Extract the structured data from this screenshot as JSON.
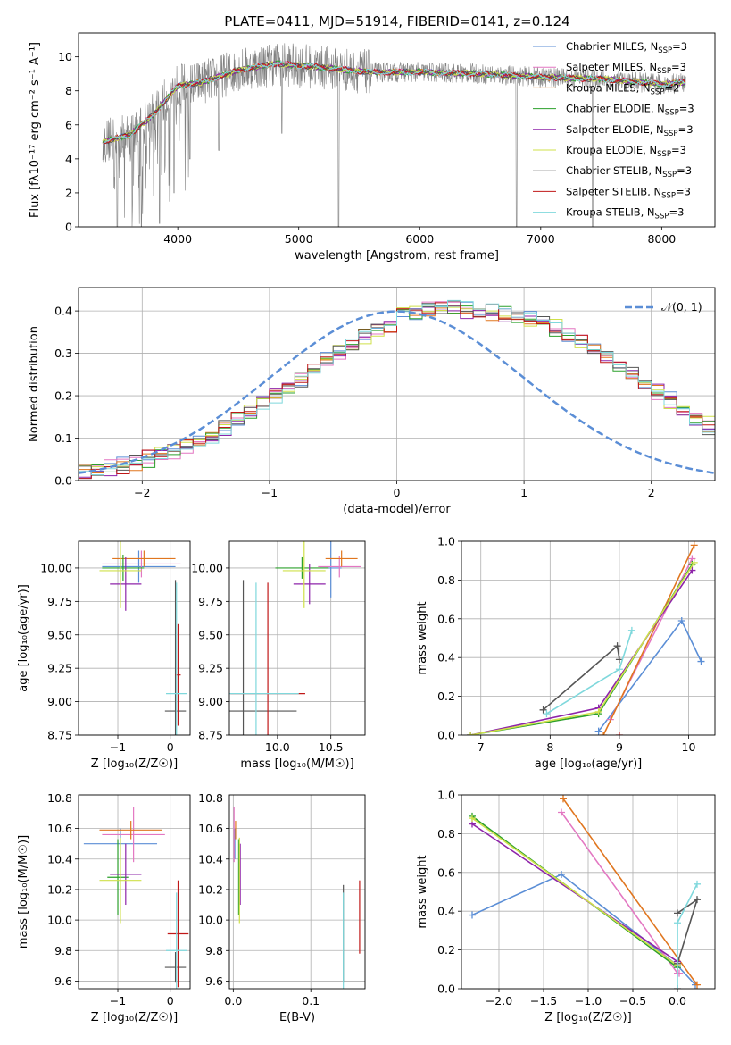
{
  "figure_title": "PLATE=0411, MJD=51914, FIBERID=0141, z=0.124",
  "colors": {
    "Chabrier MILES": "#5b8ed6",
    "Salpeter MILES": "#e377c2",
    "Kroupa MILES": "#e0761f",
    "Chabrier ELODIE": "#2ca02c",
    "Salpeter ELODIE": "#8e24aa",
    "Kroupa ELODIE": "#cfe04a",
    "Chabrier STELIB": "#555555",
    "Salpeter STELIB": "#c01818",
    "Kroupa STELIB": "#7fd8dc",
    "gaussian": "#5b8ed6",
    "grid": "#b0b0b0"
  },
  "chart_data": [
    {
      "id": "spectrum",
      "type": "line",
      "title": "PLATE=0411, MJD=51914, FIBERID=0141, z=0.124",
      "xlabel": "wavelength [Angstrom, rest frame]",
      "ylabel": "Flux [fλ10⁻¹⁷ erg cm⁻² s⁻¹ A⁻¹]",
      "xlim": [
        3180,
        8440
      ],
      "ylim": [
        0,
        11.4
      ],
      "xticks": [
        4000,
        5000,
        6000,
        7000,
        8000
      ],
      "yticks": [
        0,
        2,
        4,
        6,
        8,
        10
      ],
      "grid": false,
      "legend_position": "right",
      "legend": [
        {
          "label": "Chabrier MILES, N",
          "sub": "SSP",
          "tail": "=3"
        },
        {
          "label": "Salpeter MILES, N",
          "sub": "SSP",
          "tail": "=3"
        },
        {
          "label": "Kroupa MILES, N",
          "sub": "SSP",
          "tail": "=2"
        },
        {
          "label": "Chabrier ELODIE, N",
          "sub": "SSP",
          "tail": "=3"
        },
        {
          "label": "Salpeter ELODIE, N",
          "sub": "SSP",
          "tail": "=3"
        },
        {
          "label": "Kroupa ELODIE, N",
          "sub": "SSP",
          "tail": "=3"
        },
        {
          "label": "Chabrier STELIB, N",
          "sub": "SSP",
          "tail": "=3"
        },
        {
          "label": "Salpeter STELIB, N",
          "sub": "SSP",
          "tail": "=3"
        },
        {
          "label": "Kroupa STELIB, N",
          "sub": "SSP",
          "tail": "=3"
        }
      ],
      "continuum": [
        [
          3380,
          5.0
        ],
        [
          3600,
          5.4
        ],
        [
          3800,
          6.6
        ],
        [
          4000,
          8.3
        ],
        [
          4200,
          8.5
        ],
        [
          4500,
          9.2
        ],
        [
          4800,
          9.6
        ],
        [
          5000,
          9.5
        ],
        [
          5300,
          9.3
        ],
        [
          5600,
          9.1
        ],
        [
          6000,
          9.1
        ],
        [
          6500,
          9.0
        ],
        [
          7000,
          8.8
        ],
        [
          7500,
          8.7
        ],
        [
          8000,
          8.4
        ],
        [
          8200,
          8.5
        ]
      ],
      "noise_amplitude": 1.2,
      "drops": [
        [
          3500,
          0
        ],
        [
          3700,
          0
        ],
        [
          3850,
          0.2
        ],
        [
          3935,
          1.5
        ],
        [
          3970,
          2.0
        ],
        [
          4100,
          4.0
        ],
        [
          4340,
          4.5
        ],
        [
          4860,
          5.5
        ],
        [
          5330,
          0
        ],
        [
          6800,
          0
        ],
        [
          7430,
          0
        ]
      ]
    },
    {
      "id": "residuals",
      "type": "line",
      "xlabel": "(data-model)/error",
      "ylabel": "Normed distribution",
      "xlim": [
        -2.5,
        2.5
      ],
      "ylim": [
        0,
        0.455
      ],
      "xticks": [
        -2,
        -1,
        0,
        1,
        2
      ],
      "yticks": [
        0.0,
        0.1,
        0.2,
        0.3,
        0.4
      ],
      "grid": true,
      "legend_position": "upper-right",
      "legend": [
        {
          "label": "𝒩(0, 1)",
          "style": "dashed"
        }
      ],
      "bin_width": 0.1,
      "bins_start": -2.5,
      "base_values": [
        0.021,
        0.025,
        0.031,
        0.036,
        0.044,
        0.052,
        0.06,
        0.07,
        0.08,
        0.095,
        0.11,
        0.126,
        0.143,
        0.16,
        0.18,
        0.2,
        0.22,
        0.24,
        0.262,
        0.285,
        0.305,
        0.323,
        0.34,
        0.355,
        0.368,
        0.378,
        0.386,
        0.392,
        0.396,
        0.399,
        0.392,
        0.388,
        0.385,
        0.38,
        0.375,
        0.368,
        0.36,
        0.35,
        0.34,
        0.325,
        0.31,
        0.292,
        0.272,
        0.25,
        0.23,
        0.21,
        0.19,
        0.17,
        0.15,
        0.13
      ],
      "gaussian": {
        "mu": 0,
        "sigma": 1
      }
    },
    {
      "id": "age_vs_Z",
      "type": "scatter",
      "xlabel": "Z [log₁₀(Z/Z☉)]",
      "ylabel": "age  [log₁₀(age/yr)]",
      "xlim": [
        -1.75,
        0.38
      ],
      "ylim": [
        8.75,
        10.2
      ],
      "xticks": [
        -1,
        0
      ],
      "yticks": [
        8.75,
        9.0,
        9.25,
        9.5,
        9.75,
        10.0
      ],
      "grid": true,
      "points": [
        {
          "series": "Chabrier MILES",
          "x": -0.6,
          "xerr": 0.7,
          "y": 10.01,
          "yerr": 0.12
        },
        {
          "series": "Salpeter MILES",
          "x": -0.55,
          "xerr": 0.75,
          "y": 10.03,
          "yerr": 0.1
        },
        {
          "series": "Kroupa MILES",
          "x": -0.5,
          "xerr": 0.6,
          "y": 10.07,
          "yerr": 0.06
        },
        {
          "series": "Chabrier ELODIE",
          "x": -0.9,
          "xerr": 0.4,
          "y": 10.0,
          "yerr": 0.1
        },
        {
          "series": "Salpeter ELODIE",
          "x": -0.85,
          "xerr": 0.3,
          "y": 9.88,
          "yerr": 0.2
        },
        {
          "series": "Kroupa ELODIE",
          "x": -0.95,
          "xerr": 0.4,
          "y": 9.98,
          "yerr": 0.28
        },
        {
          "series": "Chabrier STELIB",
          "x": 0.1,
          "xerr": 0.2,
          "y": 8.93,
          "yerr": 0.98
        },
        {
          "series": "Salpeter STELIB",
          "x": 0.15,
          "xerr": 0.05,
          "y": 9.2,
          "yerr": 0.38
        },
        {
          "series": "Kroupa STELIB",
          "x": 0.12,
          "xerr": 0.2,
          "y": 9.06,
          "yerr": 0.83
        }
      ]
    },
    {
      "id": "age_vs_mass",
      "type": "scatter",
      "xlabel": "mass [log₁₀(M/M☉)]",
      "ylabel": "",
      "xlim": [
        9.55,
        10.82
      ],
      "ylim": [
        8.75,
        10.2
      ],
      "xticks": [
        10.0,
        10.5
      ],
      "yticks": [
        8.75,
        9.0,
        9.25,
        9.5,
        9.75,
        10.0
      ],
      "grid": true,
      "points": [
        {
          "series": "Chabrier MILES",
          "x": 10.5,
          "xerr": 0.1,
          "y": 10.0,
          "yerr": 0.22
        },
        {
          "series": "Salpeter MILES",
          "x": 10.58,
          "xerr": 0.2,
          "y": 10.01,
          "yerr": 0.08
        },
        {
          "series": "Kroupa MILES",
          "x": 10.6,
          "xerr": 0.15,
          "y": 10.07,
          "yerr": 0.06
        },
        {
          "series": "Chabrier ELODIE",
          "x": 10.23,
          "xerr": 0.25,
          "y": 10.0,
          "yerr": 0.08
        },
        {
          "series": "Salpeter ELODIE",
          "x": 10.3,
          "xerr": 0.15,
          "y": 9.88,
          "yerr": 0.15
        },
        {
          "series": "Kroupa ELODIE",
          "x": 10.25,
          "xerr": 0.2,
          "y": 9.98,
          "yerr": 0.28
        },
        {
          "series": "Chabrier STELIB",
          "x": 9.68,
          "xerr": 0.5,
          "y": 8.93,
          "yerr": 0.98
        },
        {
          "series": "Salpeter STELIB",
          "x": 9.91,
          "xerr": 0.35,
          "y": 9.06,
          "yerr": 0.83
        },
        {
          "series": "Kroupa STELIB",
          "x": 9.8,
          "xerr": 0.4,
          "y": 9.06,
          "yerr": 0.83
        }
      ]
    },
    {
      "id": "weight_vs_age",
      "type": "line",
      "xlabel": "age  [log₁₀(age/yr)]",
      "ylabel": "mass weight",
      "xlim": [
        6.72,
        10.38
      ],
      "ylim": [
        0,
        1.0
      ],
      "xticks": [
        7,
        8,
        9,
        10
      ],
      "yticks": [
        0.0,
        0.2,
        0.4,
        0.6,
        0.8,
        1.0
      ],
      "grid": true,
      "series": [
        {
          "name": "Chabrier MILES",
          "points": [
            [
              8.7,
              0.02
            ],
            [
              9.9,
              0.59
            ],
            [
              10.18,
              0.38
            ]
          ]
        },
        {
          "name": "Salpeter MILES",
          "points": [
            [
              8.87,
              0.08
            ],
            [
              10.05,
              0.91
            ]
          ]
        },
        {
          "name": "Kroupa MILES",
          "points": [
            [
              8.77,
              0.0
            ],
            [
              10.08,
              0.98
            ]
          ]
        },
        {
          "name": "Chabrier ELODIE",
          "points": [
            [
              6.85,
              0.0
            ],
            [
              8.7,
              0.11
            ],
            [
              10.05,
              0.88
            ]
          ]
        },
        {
          "name": "Salpeter ELODIE",
          "points": [
            [
              6.85,
              0.0
            ],
            [
              8.7,
              0.14
            ],
            [
              10.05,
              0.85
            ]
          ]
        },
        {
          "name": "Kroupa ELODIE",
          "points": [
            [
              6.85,
              0.0
            ],
            [
              8.7,
              0.12
            ],
            [
              10.08,
              0.89
            ]
          ]
        },
        {
          "name": "Chabrier STELIB",
          "points": [
            [
              7.9,
              0.13
            ],
            [
              8.97,
              0.46
            ],
            [
              9.0,
              0.39
            ]
          ]
        },
        {
          "name": "Salpeter STELIB",
          "points": [
            [
              9.0,
              0.0
            ]
          ]
        },
        {
          "name": "Kroupa STELIB",
          "points": [
            [
              7.95,
              0.11
            ],
            [
              9.0,
              0.34
            ],
            [
              9.18,
              0.54
            ]
          ]
        }
      ]
    },
    {
      "id": "mass_vs_Z",
      "type": "scatter",
      "xlabel": "Z [log₁₀(Z/Z☉)]",
      "ylabel": "mass [log₁₀(M/M☉)]",
      "xlim": [
        -1.75,
        0.38
      ],
      "ylim": [
        9.55,
        10.82
      ],
      "xticks": [
        -1,
        0
      ],
      "yticks": [
        9.6,
        9.8,
        10.0,
        10.2,
        10.4,
        10.6,
        10.8
      ],
      "grid": true,
      "points": [
        {
          "series": "Chabrier MILES",
          "x": -0.95,
          "xerr": 0.7,
          "y": 10.5,
          "yerr": 0.1
        },
        {
          "series": "Salpeter MILES",
          "x": -0.7,
          "xerr": 0.6,
          "y": 10.56,
          "yerr": 0.18
        },
        {
          "series": "Kroupa MILES",
          "x": -0.75,
          "xerr": 0.6,
          "y": 10.59,
          "yerr": 0.06
        },
        {
          "series": "Chabrier ELODIE",
          "x": -1.0,
          "xerr": 0.2,
          "y": 10.28,
          "yerr": 0.25
        },
        {
          "series": "Salpeter ELODIE",
          "x": -0.85,
          "xerr": 0.3,
          "y": 10.3,
          "yerr": 0.2
        },
        {
          "series": "Kroupa ELODIE",
          "x": -0.95,
          "xerr": 0.4,
          "y": 10.26,
          "yerr": 0.28
        },
        {
          "series": "Chabrier STELIB",
          "x": 0.1,
          "xerr": 0.2,
          "y": 9.69,
          "yerr": 0.1
        },
        {
          "series": "Salpeter STELIB",
          "x": 0.15,
          "xerr": 0.2,
          "y": 9.91,
          "yerr": 0.35
        },
        {
          "series": "Kroupa STELIB",
          "x": 0.12,
          "xerr": 0.2,
          "y": 9.8,
          "yerr": 0.38
        }
      ]
    },
    {
      "id": "mass_vs_ebv",
      "type": "scatter",
      "xlabel": "E(B-V)",
      "ylabel": "",
      "xlim": [
        -0.005,
        0.17
      ],
      "ylim": [
        9.55,
        10.82
      ],
      "xticks": [
        0.0,
        0.1
      ],
      "yticks": [
        9.6,
        9.8,
        10.0,
        10.2,
        10.4,
        10.6,
        10.8
      ],
      "grid": true,
      "points": [
        {
          "series": "Chabrier MILES",
          "x": 0.002,
          "xerr": 0,
          "y": 10.5,
          "yerr": 0.1
        },
        {
          "series": "Salpeter MILES",
          "x": 0.001,
          "xerr": 0,
          "y": 10.56,
          "yerr": 0.18
        },
        {
          "series": "Kroupa MILES",
          "x": 0.003,
          "xerr": 0,
          "y": 10.59,
          "yerr": 0.06
        },
        {
          "series": "Chabrier ELODIE",
          "x": 0.007,
          "xerr": 0,
          "y": 10.28,
          "yerr": 0.25
        },
        {
          "series": "Salpeter ELODIE",
          "x": 0.009,
          "xerr": 0,
          "y": 10.3,
          "yerr": 0.2
        },
        {
          "series": "Kroupa ELODIE",
          "x": 0.008,
          "xerr": 0,
          "y": 10.26,
          "yerr": 0.28
        },
        {
          "series": "Chabrier STELIB",
          "x": 0.142,
          "xerr": 0,
          "y": 9.91,
          "yerr": 0.32
        },
        {
          "series": "Salpeter STELIB",
          "x": 0.163,
          "xerr": 0,
          "y": 10.02,
          "yerr": 0.24
        },
        {
          "series": "Kroupa STELIB",
          "x": 0.142,
          "xerr": 0,
          "y": 9.8,
          "yerr": 0.38
        }
      ]
    },
    {
      "id": "weight_vs_Z",
      "type": "line",
      "xlabel": "Z [log₁₀(Z/Z☉)]",
      "ylabel": "mass weight",
      "xlim": [
        -2.42,
        0.42
      ],
      "ylim": [
        0,
        1.0
      ],
      "xticks": [
        -2.0,
        -1.5,
        -1.0,
        -0.5,
        0.0
      ],
      "yticks": [
        0.0,
        0.2,
        0.4,
        0.6,
        0.8,
        1.0
      ],
      "grid": true,
      "series": [
        {
          "name": "Chabrier MILES",
          "points": [
            [
              -2.3,
              0.38
            ],
            [
              -1.3,
              0.59
            ],
            [
              0.0,
              0.12
            ],
            [
              0.2,
              0.02
            ]
          ]
        },
        {
          "name": "Salpeter MILES",
          "points": [
            [
              -1.3,
              0.91
            ],
            [
              0.0,
              0.08
            ],
            [
              0.02,
              0.08
            ]
          ]
        },
        {
          "name": "Kroupa MILES",
          "points": [
            [
              -1.28,
              0.98
            ],
            [
              0.22,
              0.02
            ]
          ]
        },
        {
          "name": "Chabrier ELODIE",
          "points": [
            [
              -2.3,
              0.89
            ],
            [
              0.0,
              0.11
            ]
          ]
        },
        {
          "name": "Salpeter ELODIE",
          "points": [
            [
              -2.3,
              0.85
            ],
            [
              0.0,
              0.14
            ]
          ]
        },
        {
          "name": "Kroupa ELODIE",
          "points": [
            [
              -2.3,
              0.88
            ],
            [
              0.0,
              0.12
            ]
          ]
        },
        {
          "name": "Chabrier STELIB",
          "points": [
            [
              0.0,
              0.39
            ],
            [
              0.22,
              0.46
            ],
            [
              0.0,
              0.13
            ]
          ]
        },
        {
          "name": "Salpeter STELIB",
          "points": [
            [
              0.0,
              0.0
            ]
          ]
        },
        {
          "name": "Kroupa STELIB",
          "points": [
            [
              0.0,
              0.0
            ],
            [
              0.0,
              0.34
            ],
            [
              0.22,
              0.54
            ]
          ]
        }
      ]
    }
  ]
}
